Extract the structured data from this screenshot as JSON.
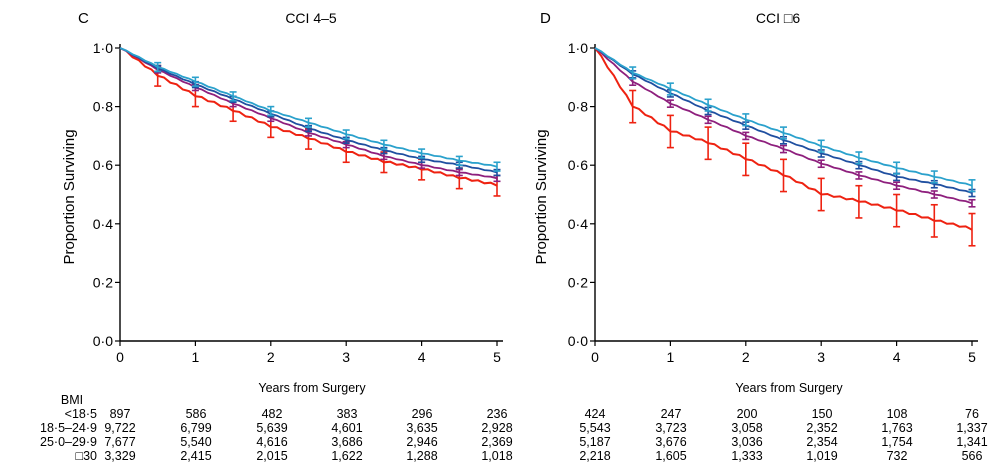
{
  "chart_data": [
    {
      "type": "line",
      "panel": "C",
      "title": "CCI 4–5",
      "xlabel": "Years from Surgery",
      "ylabel": "Proportion Surviving",
      "xlim": [
        0,
        5
      ],
      "ylim": [
        0,
        1
      ],
      "x_ticks": [
        "0",
        "1",
        "2",
        "3",
        "4",
        "5"
      ],
      "y_ticks": [
        "0·0",
        "0·2",
        "0·4",
        "0·6",
        "0·8",
        "1·0"
      ],
      "series": [
        {
          "name": "<18·5",
          "color": "#ee2211",
          "x": [
            0,
            0.5,
            1,
            1.5,
            2,
            2.5,
            3,
            3.5,
            4,
            4.5,
            5
          ],
          "y": [
            1.0,
            0.905,
            0.835,
            0.785,
            0.73,
            0.69,
            0.645,
            0.61,
            0.585,
            0.555,
            0.53
          ],
          "err": 0.035
        },
        {
          "name": "18·5–24·9",
          "color": "#8e1f7d",
          "x": [
            0,
            0.5,
            1,
            1.5,
            2,
            2.5,
            3,
            3.5,
            4,
            4.5,
            5
          ],
          "y": [
            1.0,
            0.925,
            0.865,
            0.81,
            0.76,
            0.71,
            0.67,
            0.63,
            0.6,
            0.575,
            0.555
          ],
          "err": 0.01
        },
        {
          "name": "25·0–29·9",
          "color": "#1f4fa0",
          "x": [
            0,
            0.5,
            1,
            1.5,
            2,
            2.5,
            3,
            3.5,
            4,
            4.5,
            5
          ],
          "y": [
            1.0,
            0.93,
            0.875,
            0.825,
            0.775,
            0.725,
            0.685,
            0.65,
            0.62,
            0.6,
            0.575
          ],
          "err": 0.01
        },
        {
          "name": "≥30",
          "color": "#2aa1cc",
          "x": [
            0,
            0.5,
            1,
            1.5,
            2,
            2.5,
            3,
            3.5,
            4,
            4.5,
            5
          ],
          "y": [
            1.0,
            0.935,
            0.885,
            0.835,
            0.785,
            0.745,
            0.705,
            0.67,
            0.64,
            0.615,
            0.595
          ],
          "err": 0.015
        }
      ],
      "number_at_risk": [
        [
          "897",
          "586",
          "482",
          "383",
          "296",
          "236"
        ],
        [
          "9,722",
          "6,799",
          "5,639",
          "4,601",
          "3,635",
          "2,928"
        ],
        [
          "7,677",
          "5,540",
          "4,616",
          "3,686",
          "2,946",
          "2,369"
        ],
        [
          "3,329",
          "2,415",
          "2,015",
          "1,622",
          "1,288",
          "1,018"
        ]
      ]
    },
    {
      "type": "line",
      "panel": "D",
      "title": "CCI □6",
      "xlabel": "Years from Surgery",
      "ylabel": "Proportion Surviving",
      "xlim": [
        0,
        5
      ],
      "ylim": [
        0,
        1
      ],
      "x_ticks": [
        "0",
        "1",
        "2",
        "3",
        "4",
        "5"
      ],
      "y_ticks": [
        "0·0",
        "0·2",
        "0·4",
        "0·6",
        "0·8",
        "1·0"
      ],
      "series": [
        {
          "name": "<18·5",
          "color": "#ee2211",
          "x": [
            0,
            0.5,
            1,
            1.5,
            2,
            2.5,
            3,
            3.5,
            4,
            4.5,
            5
          ],
          "y": [
            1.0,
            0.8,
            0.715,
            0.675,
            0.62,
            0.565,
            0.5,
            0.475,
            0.445,
            0.41,
            0.38
          ],
          "err": 0.055
        },
        {
          "name": "18·5–24·9",
          "color": "#8e1f7d",
          "x": [
            0,
            0.5,
            1,
            1.5,
            2,
            2.5,
            3,
            3.5,
            4,
            4.5,
            5
          ],
          "y": [
            1.0,
            0.885,
            0.81,
            0.755,
            0.7,
            0.655,
            0.605,
            0.565,
            0.53,
            0.5,
            0.47
          ],
          "err": 0.012
        },
        {
          "name": "25·0–29·9",
          "color": "#1f4fa0",
          "x": [
            0,
            0.5,
            1,
            1.5,
            2,
            2.5,
            3,
            3.5,
            4,
            4.5,
            5
          ],
          "y": [
            1.0,
            0.91,
            0.845,
            0.785,
            0.735,
            0.685,
            0.64,
            0.6,
            0.56,
            0.535,
            0.505
          ],
          "err": 0.012
        },
        {
          "name": "≥30",
          "color": "#2aa1cc",
          "x": [
            0,
            0.5,
            1,
            1.5,
            2,
            2.5,
            3,
            3.5,
            4,
            4.5,
            5
          ],
          "y": [
            1.0,
            0.915,
            0.86,
            0.805,
            0.755,
            0.71,
            0.665,
            0.625,
            0.59,
            0.56,
            0.53
          ],
          "err": 0.02
        }
      ],
      "number_at_risk": [
        [
          "424",
          "247",
          "200",
          "150",
          "108",
          "76"
        ],
        [
          "5,543",
          "3,723",
          "3,058",
          "2,352",
          "1,763",
          "1,337"
        ],
        [
          "5,187",
          "3,676",
          "3,036",
          "2,354",
          "1,754",
          "1,341"
        ],
        [
          "2,218",
          "1,605",
          "1,333",
          "1,019",
          "732",
          "566"
        ]
      ]
    }
  ],
  "risk_table": {
    "header": "BMI",
    "row_labels": [
      "<18·5",
      "18·5–24·9",
      "25·0–29·9",
      "□30"
    ]
  }
}
